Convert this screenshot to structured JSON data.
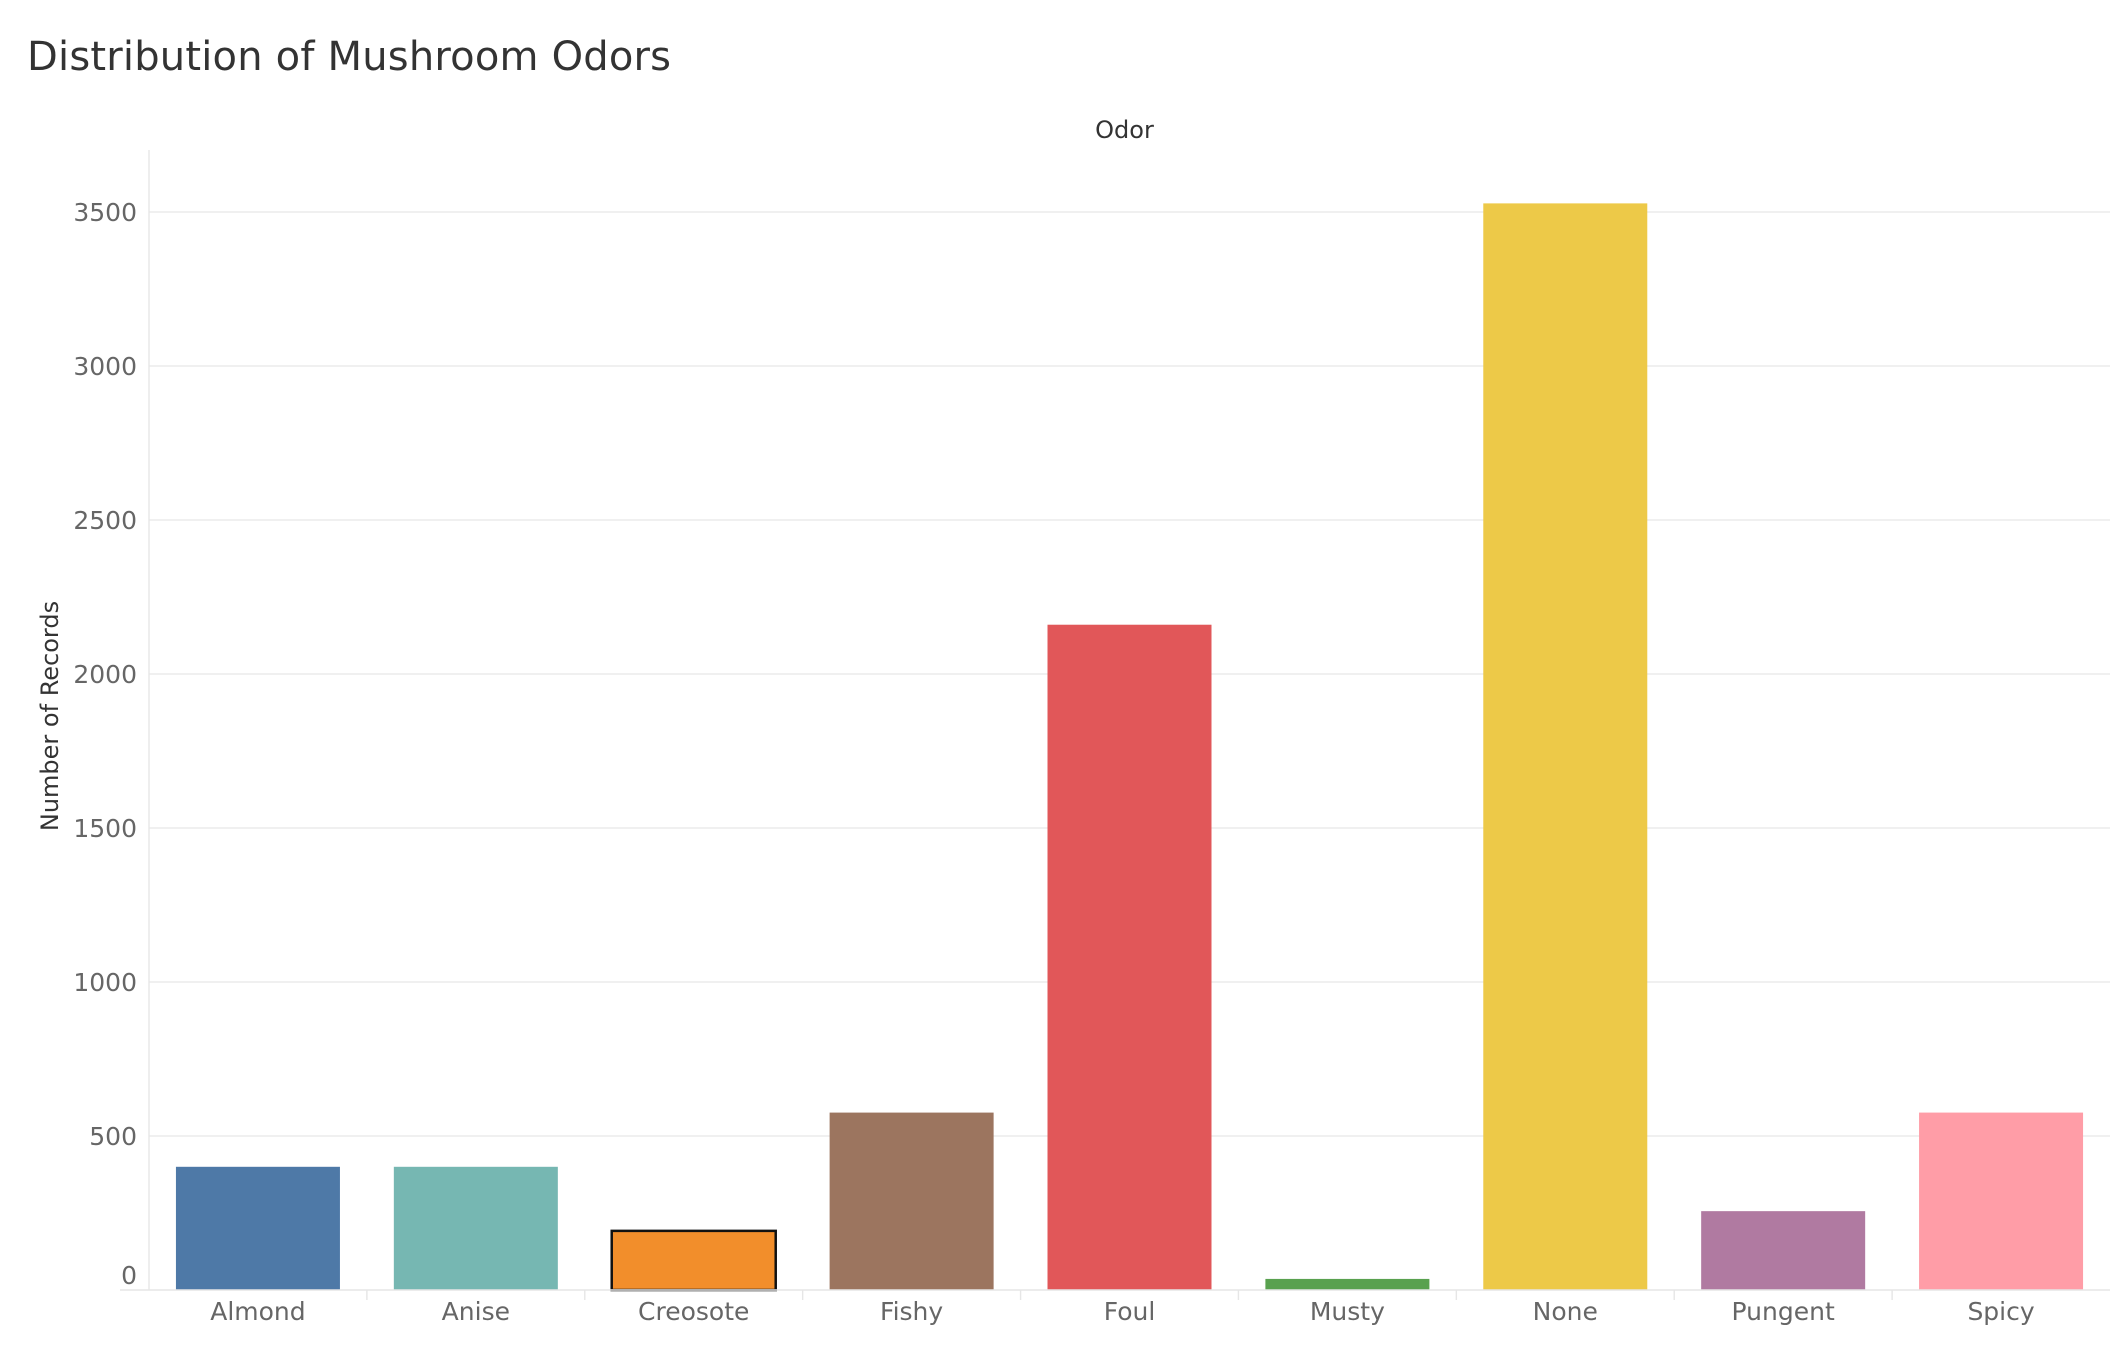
{
  "chart_data": {
    "type": "bar",
    "title": "Distribution of Mushroom Odors",
    "column_header": "Odor",
    "xlabel": "",
    "ylabel": "Number of Records",
    "categories": [
      "Almond",
      "Anise",
      "Creosote",
      "Fishy",
      "Foul",
      "Musty",
      "None",
      "Pungent",
      "Spicy"
    ],
    "values": [
      400,
      400,
      192,
      576,
      2160,
      36,
      3528,
      256,
      576
    ],
    "colors": [
      "#4e79a7",
      "#76b7b2",
      "#f28e2b",
      "#9c755f",
      "#e15759",
      "#59a14f",
      "#edc948",
      "#b07aa1",
      "#ff9da7"
    ],
    "highlighted": "Creosote",
    "ylim": [
      0,
      3700
    ],
    "yticks": [
      0,
      500,
      1000,
      1500,
      2000,
      2500,
      3000,
      3500
    ],
    "grid": true,
    "legend": "none"
  }
}
